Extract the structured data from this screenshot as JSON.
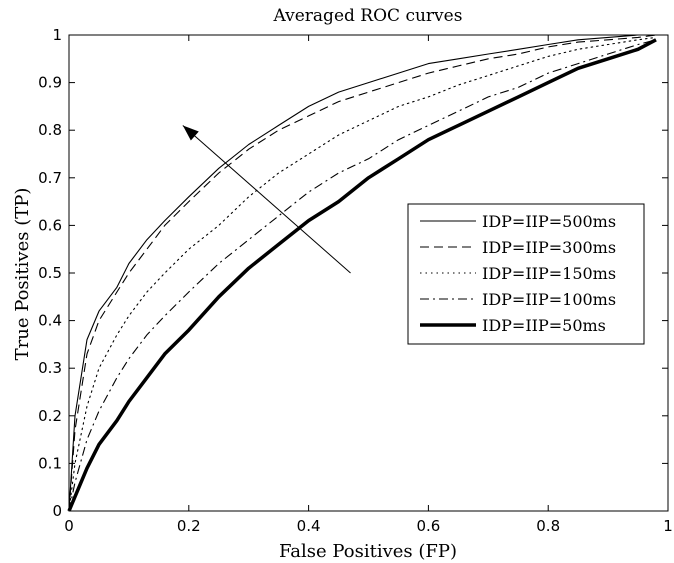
{
  "chart_data": {
    "type": "line",
    "title": "Averaged ROC curves",
    "xlabel": "False Positives (FP)",
    "ylabel": "True Positives (TP)",
    "xlim": [
      0,
      1
    ],
    "ylim": [
      0,
      1
    ],
    "xticks": [
      "0",
      "0.2",
      "0.4",
      "0.6",
      "0.8",
      "1"
    ],
    "yticks": [
      "0",
      "0.1",
      "0.2",
      "0.3",
      "0.4",
      "0.5",
      "0.6",
      "0.7",
      "0.8",
      "0.9",
      "1"
    ],
    "grid": false,
    "legend_position": "center-right",
    "series": [
      {
        "name": "IDP=IIP=500ms",
        "style": "solid",
        "width": "thin",
        "x": [
          0,
          0.01,
          0.03,
          0.05,
          0.08,
          0.1,
          0.13,
          0.16,
          0.2,
          0.25,
          0.3,
          0.35,
          0.4,
          0.45,
          0.5,
          0.55,
          0.6,
          0.65,
          0.7,
          0.75,
          0.8,
          0.85,
          0.9,
          0.95,
          0.98
        ],
        "y": [
          0,
          0.2,
          0.36,
          0.42,
          0.47,
          0.52,
          0.57,
          0.61,
          0.66,
          0.72,
          0.77,
          0.81,
          0.85,
          0.88,
          0.9,
          0.92,
          0.94,
          0.95,
          0.96,
          0.97,
          0.98,
          0.99,
          0.995,
          1.0,
          1.0
        ]
      },
      {
        "name": "IDP=IIP=300ms",
        "style": "dashed",
        "width": "thin",
        "x": [
          0,
          0.01,
          0.03,
          0.05,
          0.08,
          0.1,
          0.13,
          0.16,
          0.2,
          0.25,
          0.3,
          0.35,
          0.4,
          0.45,
          0.5,
          0.55,
          0.6,
          0.65,
          0.7,
          0.75,
          0.8,
          0.85,
          0.9,
          0.95,
          0.98
        ],
        "y": [
          0,
          0.17,
          0.33,
          0.4,
          0.46,
          0.5,
          0.55,
          0.6,
          0.65,
          0.71,
          0.76,
          0.8,
          0.83,
          0.86,
          0.88,
          0.9,
          0.92,
          0.935,
          0.95,
          0.96,
          0.975,
          0.985,
          0.99,
          0.995,
          1.0
        ]
      },
      {
        "name": "IDP=IIP=150ms",
        "style": "dotted",
        "width": "thin",
        "x": [
          0,
          0.01,
          0.03,
          0.05,
          0.08,
          0.1,
          0.13,
          0.16,
          0.2,
          0.25,
          0.3,
          0.35,
          0.4,
          0.45,
          0.5,
          0.55,
          0.6,
          0.65,
          0.7,
          0.75,
          0.8,
          0.85,
          0.9,
          0.95,
          0.98
        ],
        "y": [
          0,
          0.1,
          0.22,
          0.3,
          0.37,
          0.41,
          0.46,
          0.5,
          0.55,
          0.6,
          0.66,
          0.71,
          0.75,
          0.79,
          0.82,
          0.85,
          0.87,
          0.895,
          0.915,
          0.935,
          0.955,
          0.97,
          0.98,
          0.99,
          0.995
        ]
      },
      {
        "name": "IDP=IIP=100ms",
        "style": "dashdot",
        "width": "thin",
        "x": [
          0,
          0.01,
          0.03,
          0.05,
          0.08,
          0.1,
          0.13,
          0.16,
          0.2,
          0.25,
          0.3,
          0.35,
          0.4,
          0.45,
          0.5,
          0.55,
          0.6,
          0.65,
          0.7,
          0.75,
          0.8,
          0.85,
          0.9,
          0.95,
          0.98
        ],
        "y": [
          0,
          0.06,
          0.15,
          0.21,
          0.28,
          0.32,
          0.37,
          0.41,
          0.46,
          0.52,
          0.57,
          0.62,
          0.67,
          0.71,
          0.74,
          0.78,
          0.81,
          0.84,
          0.87,
          0.89,
          0.92,
          0.94,
          0.96,
          0.98,
          0.99
        ]
      },
      {
        "name": "IDP=IIP=50ms",
        "style": "solid",
        "width": "thick",
        "x": [
          0,
          0.01,
          0.03,
          0.05,
          0.08,
          0.1,
          0.13,
          0.16,
          0.2,
          0.25,
          0.3,
          0.35,
          0.4,
          0.45,
          0.5,
          0.55,
          0.6,
          0.65,
          0.7,
          0.75,
          0.8,
          0.85,
          0.9,
          0.95,
          0.98
        ],
        "y": [
          0,
          0.03,
          0.09,
          0.14,
          0.19,
          0.23,
          0.28,
          0.33,
          0.38,
          0.45,
          0.51,
          0.56,
          0.61,
          0.65,
          0.7,
          0.74,
          0.78,
          0.81,
          0.84,
          0.87,
          0.9,
          0.93,
          0.95,
          0.97,
          0.99
        ]
      }
    ],
    "arrow": {
      "from": [
        0.47,
        0.5
      ],
      "to": [
        0.19,
        0.81
      ]
    }
  }
}
